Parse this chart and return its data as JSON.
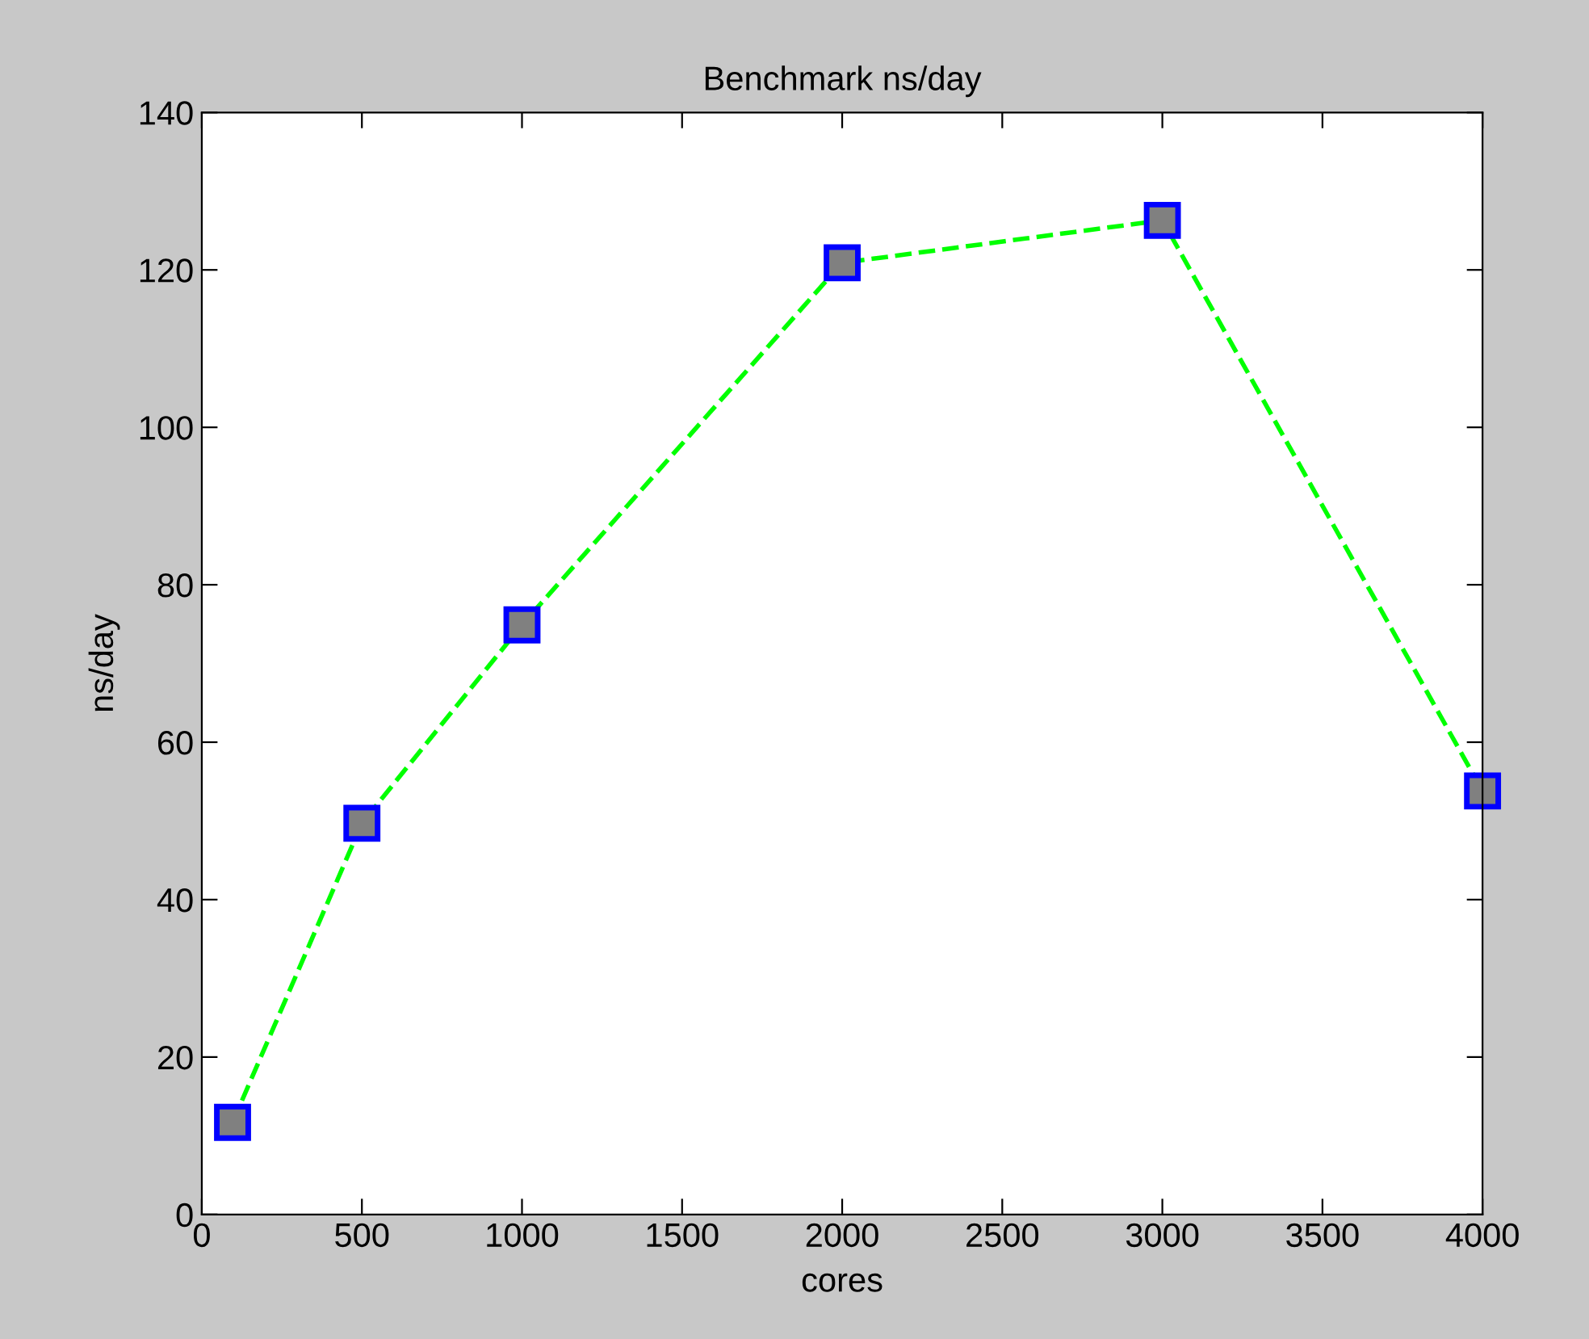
{
  "chart_data": {
    "type": "line",
    "title": "Benchmark ns/day",
    "xlabel": "cores",
    "ylabel": "ns/day",
    "x": [
      96,
      500,
      1000,
      2000,
      3000,
      4000
    ],
    "series": [
      {
        "color": "#00ff00",
        "values": [
          11.7,
          49.7,
          74.9,
          120.9,
          126.3,
          53.8
        ]
      }
    ],
    "xlim": [
      0,
      4000
    ],
    "xticks": [
      0,
      500,
      1000,
      1500,
      2000,
      2500,
      3000,
      3500,
      4000
    ],
    "ylim": [
      0,
      140
    ],
    "yticks": [
      0,
      20,
      40,
      60,
      80,
      100,
      120,
      140
    ],
    "grid": false,
    "marker": "square",
    "line_style": "dashed"
  }
}
